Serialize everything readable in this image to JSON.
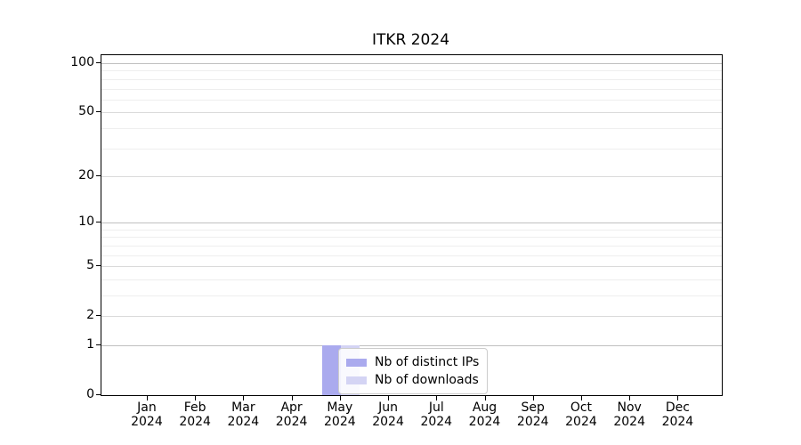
{
  "figure": {
    "background": "#ffffff"
  },
  "legend": {
    "items": [
      {
        "label": "Nb of distinct IPs",
        "color": "#aaaaee"
      },
      {
        "label": "Nb of downloads",
        "color": "#d4d4f4"
      }
    ]
  },
  "chart_data": {
    "type": "bar",
    "title": "ITKR 2024",
    "categories": [
      "Jan",
      "Feb",
      "Mar",
      "Apr",
      "May",
      "Jun",
      "Jul",
      "Aug",
      "Sep",
      "Oct",
      "Nov",
      "Dec"
    ],
    "year_label": "2024",
    "series": [
      {
        "name": "Nb of distinct IPs",
        "color": "#aaaaee",
        "values": [
          0,
          0,
          0,
          0,
          1,
          0,
          0,
          0,
          0,
          0,
          0,
          0
        ]
      },
      {
        "name": "Nb of downloads",
        "color": "#d4d4f4",
        "values": [
          0,
          0,
          0,
          0,
          1,
          0,
          0,
          0,
          0,
          0,
          0,
          0
        ]
      }
    ],
    "xlabel": "",
    "ylabel": "",
    "yscale": "log1p",
    "ylim": [
      0,
      112
    ],
    "yticks": [
      0,
      1,
      2,
      5,
      10,
      20,
      50,
      100
    ],
    "yticks_minor": [
      3,
      4,
      6,
      7,
      8,
      9,
      30,
      40,
      60,
      70,
      80,
      90
    ],
    "grid": true,
    "grid_colors": {
      "decade": "#c0c0c0",
      "labeled": "#dadada",
      "minor": "#eeeeee"
    },
    "decade_ticks": [
      1,
      10,
      100
    ],
    "spine_color": "#000000",
    "legend_position": "inside lower-left-of-center",
    "x_first_center_frac": 0.0745,
    "x_center_step_frac": 0.0778,
    "bar_width_frac": 0.0301
  }
}
